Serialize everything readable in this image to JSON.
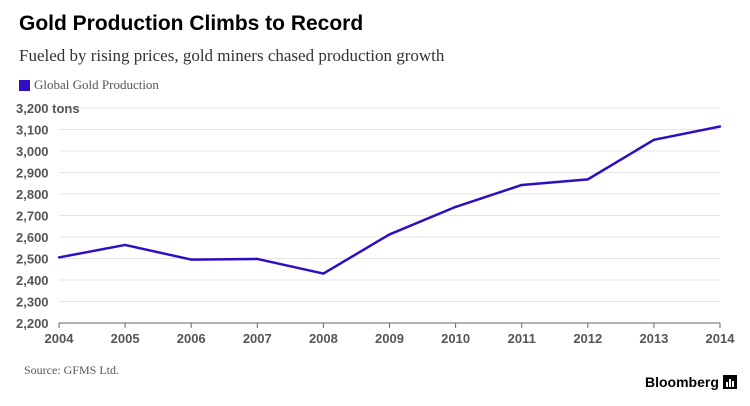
{
  "header": {
    "title": "Gold Production Climbs to Record",
    "subtitle": "Fueled by rising prices, gold miners chased production growth"
  },
  "footer": {
    "source": "Source: GFMS Ltd.",
    "brand": "Bloomberg",
    "brand_icon": "bloomberg-logo-icon"
  },
  "colors": {
    "series": "#2e0ec0",
    "grid": "#e4e4e4",
    "axis": "#666666"
  },
  "chart_data": {
    "type": "line",
    "title": "Gold Production Climbs to Record",
    "subtitle": "Fueled by rising prices, gold miners chased production growth",
    "x": [
      "2004",
      "2005",
      "2006",
      "2007",
      "2008",
      "2009",
      "2010",
      "2011",
      "2012",
      "2013",
      "2014"
    ],
    "series": [
      {
        "name": "Global Gold Production",
        "values": [
          2505,
          2563,
          2495,
          2498,
          2430,
          2612,
          2740,
          2842,
          2868,
          3052,
          3114
        ]
      }
    ],
    "ylim": [
      2200,
      3200
    ],
    "yticks": [
      "2,200",
      "2,300",
      "2,400",
      "2,500",
      "2,600",
      "2,700",
      "2,800",
      "2,900",
      "3,000",
      "3,100",
      "3,200"
    ],
    "ytick_values": [
      2200,
      2300,
      2400,
      2500,
      2600,
      2700,
      2800,
      2900,
      3000,
      3100,
      3200
    ],
    "yunit": "tons",
    "grid": true,
    "legend": "top-left"
  }
}
